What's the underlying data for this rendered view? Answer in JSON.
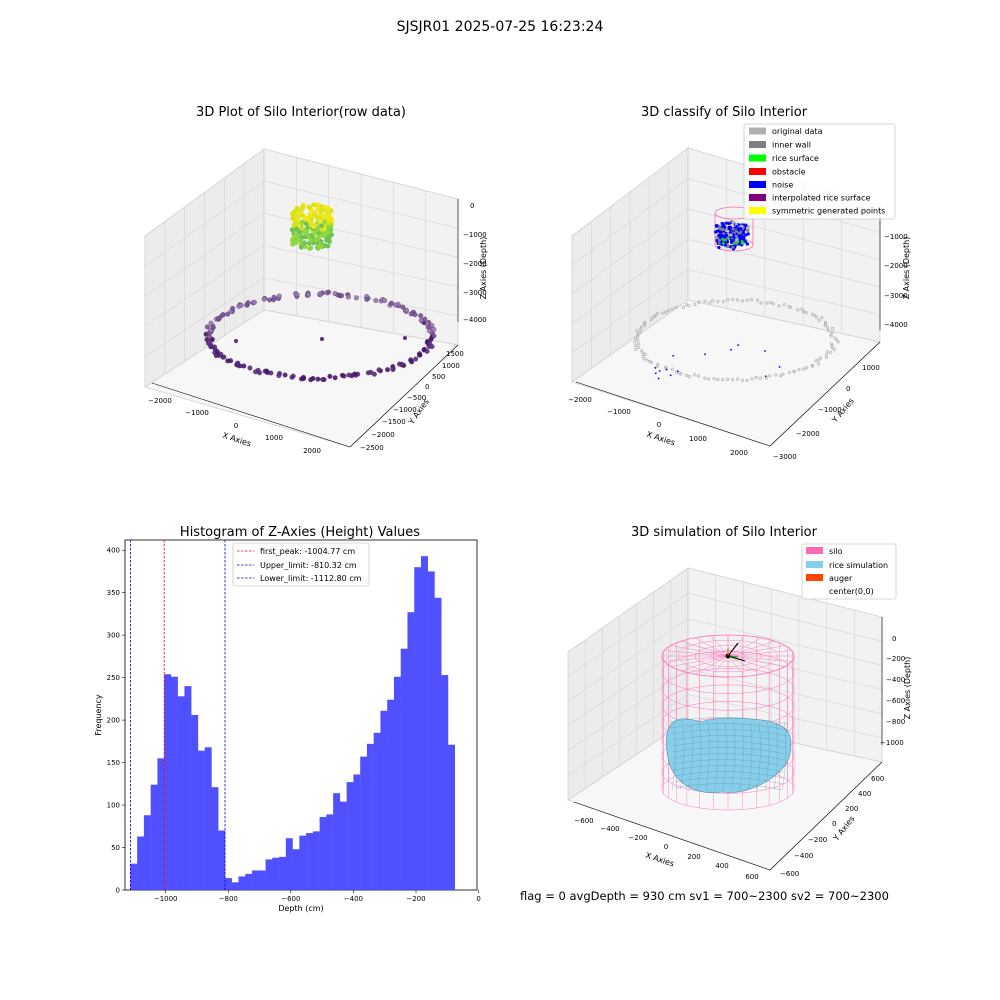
{
  "figure": {
    "suptitle": "SJSJR01 2025-07-25 16:23:24",
    "status_line": "flag = 0    avgDepth = 930 cm  sv1 = 700~2300  sv2 = 700~2300"
  },
  "chart_data": [
    {
      "type": "scatter",
      "title": "3D Plot of Silo Interior(row data)",
      "xlabel": "X Axies",
      "ylabel": "Y Axies",
      "zlabel": "Z Axies (Depth)",
      "x_ticks": [
        "−2000",
        "−1000",
        "0",
        "1000",
        "2000"
      ],
      "y_ticks": [
        "1500",
        "1000",
        "500",
        "0",
        "−500",
        "−1000",
        "−1500",
        "−2000",
        "−2500"
      ],
      "z_ticks": [
        "0",
        "−1000",
        "−2000",
        "−3000",
        "−4000"
      ],
      "series": [
        {
          "colors": [
            "#f0e81c",
            "#d8e21e",
            "#8fd840",
            "#6ec254"
          ]
        },
        {
          "colors": [
            "#5c2d7e",
            "#48166a",
            "#7a5396",
            "#9a7bb4"
          ]
        }
      ]
    },
    {
      "type": "scatter",
      "title": "3D classify of Silo Interior",
      "xlabel": "X Axies",
      "ylabel": "Y Axies",
      "zlabel": "Z Axies (Depth)",
      "x_ticks": [
        "−2000",
        "−1000",
        "0",
        "1000",
        "2000"
      ],
      "y_ticks": [
        "1000",
        "0",
        "−1000",
        "−2000",
        "−3000"
      ],
      "z_ticks": [
        "−1000",
        "−2000",
        "−3000",
        "−4000"
      ],
      "legend": [
        {
          "label": "original data",
          "color": "#b0b0b0"
        },
        {
          "label": "inner wall",
          "color": "#808080"
        },
        {
          "label": "rice surface",
          "color": "#00ff00"
        },
        {
          "label": "obstacle",
          "color": "#ff0000"
        },
        {
          "label": "noise",
          "color": "#0000ff"
        },
        {
          "label": "interpolated rice surface",
          "color": "#800080"
        },
        {
          "label": "symmetric generated points",
          "color": "#ffff00"
        }
      ]
    },
    {
      "type": "bar",
      "title": "Histogram of Z-Axies (Height) Values",
      "xlabel": "Depth (cm)",
      "ylabel": "Frequency",
      "xlim": [
        -1130,
        -5
      ],
      "ylim": [
        0,
        412
      ],
      "x_ticks": [
        -1000,
        -800,
        -600,
        -400,
        -200,
        0
      ],
      "x_tick_labels": [
        "−1000",
        "−800",
        "−600",
        "−400",
        "−200",
        "0"
      ],
      "y_ticks": [
        0,
        50,
        100,
        150,
        200,
        250,
        300,
        350,
        400
      ],
      "bar_color": "#4d4dff",
      "bin_start": -1112.8,
      "bin_width": 21.6,
      "values": [
        31,
        63,
        88,
        124,
        155,
        254,
        251,
        228,
        240,
        206,
        164,
        168,
        121,
        70,
        14,
        9,
        16,
        19,
        23,
        23,
        36,
        38,
        39,
        61,
        48,
        64,
        67,
        69,
        86,
        89,
        114,
        104,
        127,
        136,
        157,
        172,
        185,
        211,
        224,
        251,
        284,
        327,
        380,
        393,
        375,
        344,
        253,
        171
      ],
      "lines": [
        {
          "label": "first_peak: -1004.77 cm",
          "x": -1004.77,
          "color": "#ff0000"
        },
        {
          "label": "Upper_limit: -810.32 cm",
          "x": -810.32,
          "color": "#0000cc"
        },
        {
          "label": "Lower_limit: -1112.80 cm",
          "x": -1112.8,
          "color": "#0000cc"
        }
      ]
    },
    {
      "type": "surface",
      "title": "3D simulation of Silo Interior",
      "xlabel": "X Axies",
      "ylabel": "Y Axies",
      "zlabel": "Z Axies (Depth)",
      "x_ticks": [
        "−600",
        "−400",
        "−200",
        "0",
        "200",
        "400",
        "600"
      ],
      "y_ticks": [
        "600",
        "400",
        "200",
        "0",
        "−200",
        "−400",
        "−600"
      ],
      "z_ticks": [
        "0",
        "−200",
        "−400",
        "−600",
        "−800",
        "−1000"
      ],
      "legend": [
        {
          "label": "silo",
          "color": "#ff69b4"
        },
        {
          "label": "rice simulation",
          "color": "#87ceeb"
        },
        {
          "label": "auger",
          "color": "#ff4500"
        },
        {
          "label": "center(0,0)",
          "color": "#ffffff"
        }
      ]
    }
  ]
}
